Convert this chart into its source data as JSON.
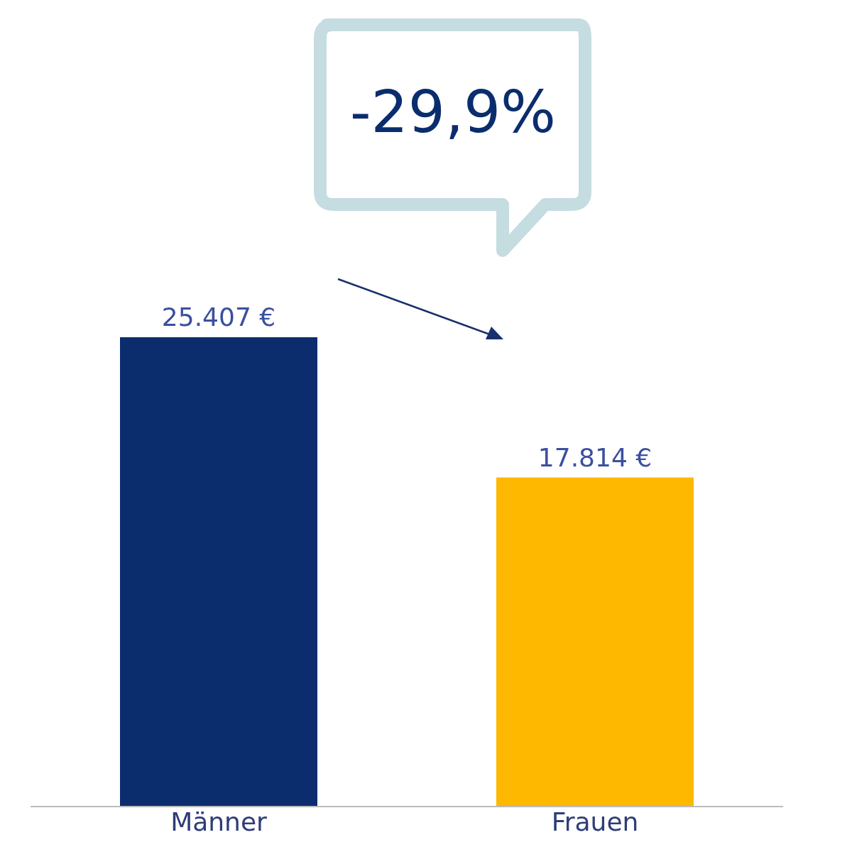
{
  "chart_data": {
    "type": "bar",
    "categories": [
      "Männer",
      "Frauen"
    ],
    "values": [
      25407,
      17814
    ],
    "colors": [
      "#0b2d6e",
      "#ffb800"
    ],
    "value_labels": [
      "25.407 €",
      "17.814 €"
    ],
    "annotations": [
      "-29,9%"
    ]
  }
}
